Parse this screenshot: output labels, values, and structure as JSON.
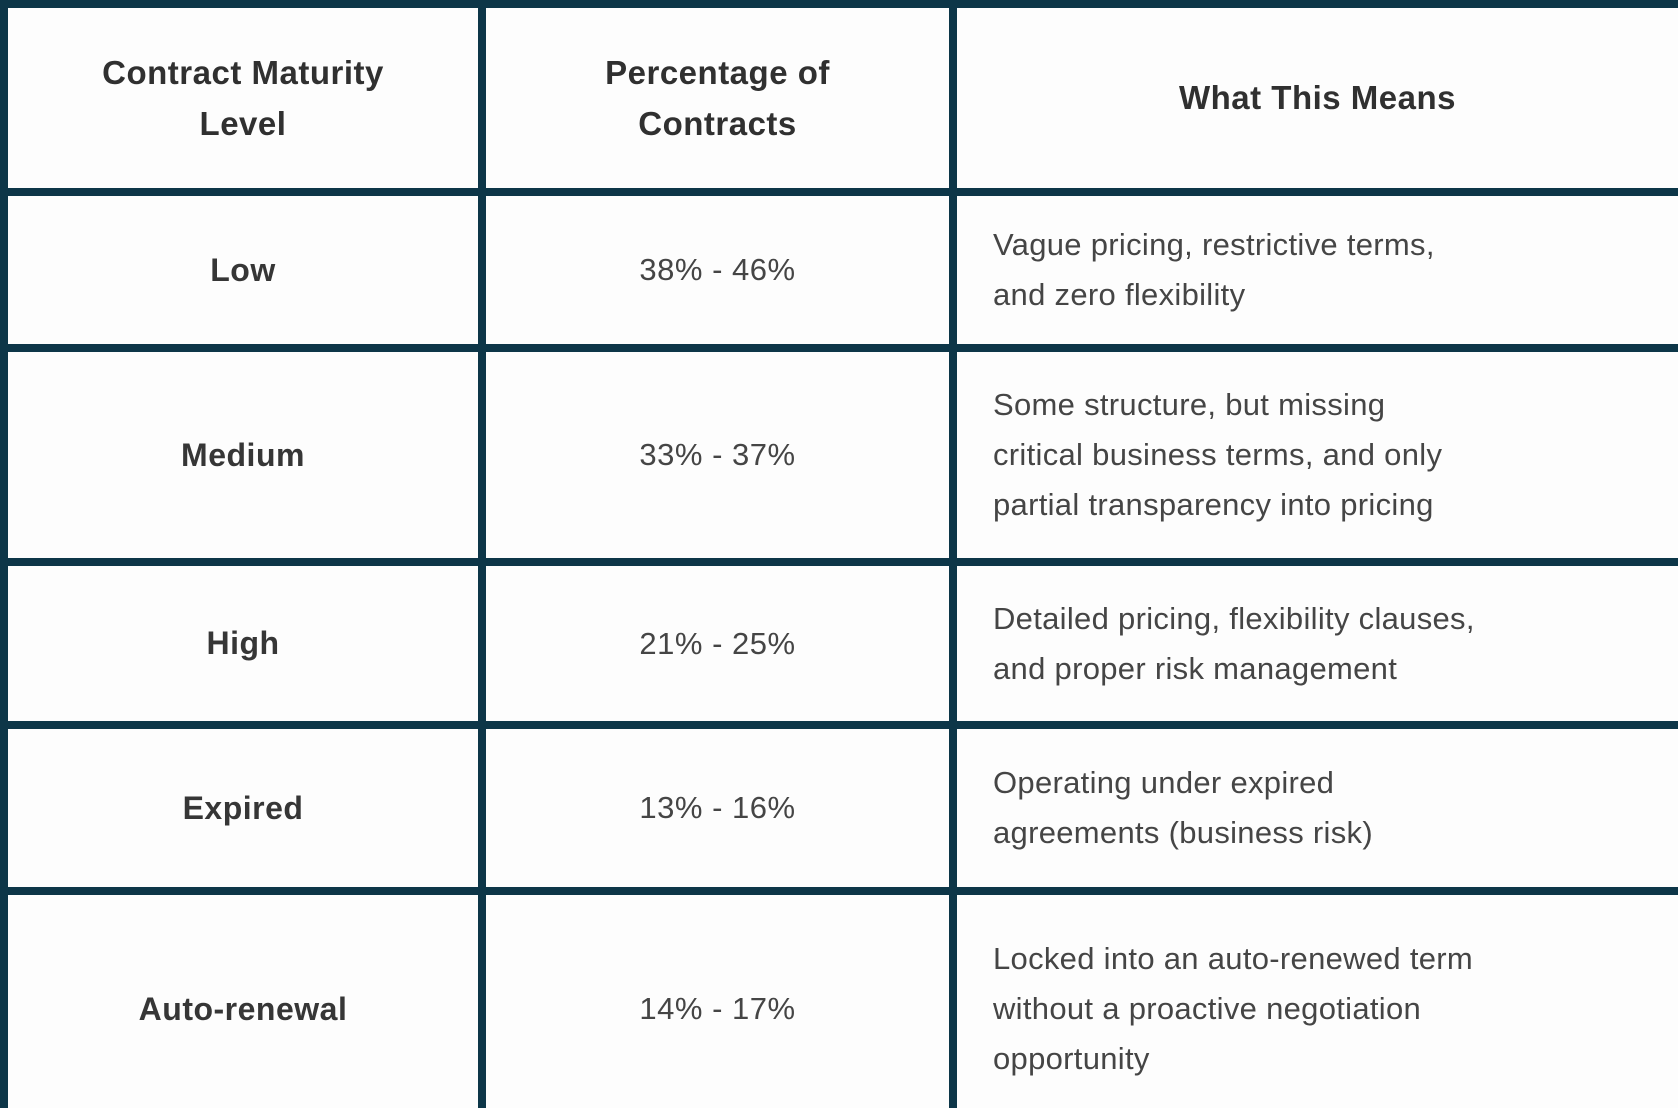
{
  "chart_data": {
    "type": "table",
    "columns": [
      "Contract Maturity Level",
      "Percentage of Contracts",
      "What This Means"
    ],
    "rows": [
      {
        "level": "Low",
        "percentage_range": "38% - 46%",
        "pct_min": 38,
        "pct_max": 46,
        "meaning": "Vague pricing, restrictive terms, and zero flexibility"
      },
      {
        "level": "Medium",
        "percentage_range": "33% - 37%",
        "pct_min": 33,
        "pct_max": 37,
        "meaning": "Some structure, but missing critical business terms, and only partial transparency into pricing"
      },
      {
        "level": "High",
        "percentage_range": "21% - 25%",
        "pct_min": 21,
        "pct_max": 25,
        "meaning": "Detailed pricing, flexibility clauses, and proper risk management"
      },
      {
        "level": "Expired",
        "percentage_range": "13% - 16%",
        "pct_min": 13,
        "pct_max": 16,
        "meaning": "Operating under expired agreements (business risk)"
      },
      {
        "level": "Auto-renewal",
        "percentage_range": "14% - 17%",
        "pct_min": 14,
        "pct_max": 17,
        "meaning": "Locked into an auto-renewed term without a proactive negotiation opportunity"
      }
    ]
  },
  "display": {
    "headers": [
      "Contract Maturity\nLevel",
      "Percentage of\nContracts",
      "What This Means"
    ],
    "rows": [
      {
        "level": "Low",
        "percentage": "38% - 46%",
        "meaning": "Vague pricing, restrictive terms,\nand zero flexibility"
      },
      {
        "level": "Medium",
        "percentage": "33% - 37%",
        "meaning": "Some structure, but missing\ncritical business terms, and only\npartial transparency into pricing"
      },
      {
        "level": "High",
        "percentage": "21% - 25%",
        "meaning": "Detailed pricing, flexibility clauses,\nand proper risk management"
      },
      {
        "level": "Expired",
        "percentage": "13% - 16%",
        "meaning": "Operating under expired\nagreements (business risk)"
      },
      {
        "level": "Auto-renewal",
        "percentage": "14% - 17%",
        "meaning": "Locked into an auto-renewed term\nwithout a proactive negotiation\nopportunity"
      }
    ]
  },
  "colors": {
    "border": "#0d3648",
    "header_text": "#303030",
    "label_text": "#363636",
    "body_text": "#454545",
    "cell_background": "#fdfdfd"
  }
}
